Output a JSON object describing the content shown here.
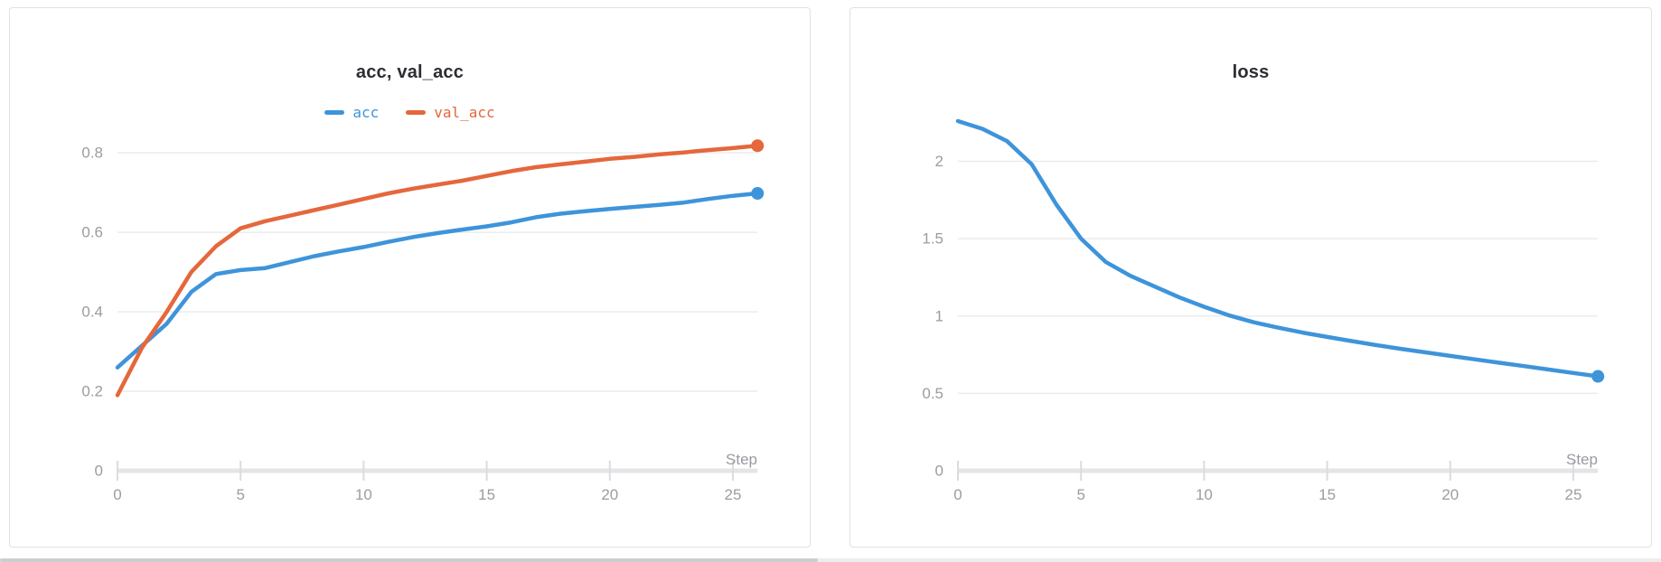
{
  "colors": {
    "series_blue": "#3e94da",
    "series_orange": "#e5673c",
    "title_text": "#2c2e33",
    "axis_text": "#9b9ca2",
    "gridline": "#ececee",
    "axis_bar": "#e5e5e8",
    "tick_mark": "#dcdce0",
    "panel_border": "#dfe1e4",
    "background": "#ffffff"
  },
  "chart_data": [
    {
      "type": "line",
      "title": "acc, val_acc",
      "x_label": "Step",
      "legend_position": "top",
      "grid": true,
      "xlim": [
        0,
        26
      ],
      "xticks": [
        0,
        5,
        10,
        15,
        20,
        25
      ],
      "ylim": [
        0,
        0.88
      ],
      "yticks": [
        0,
        0.2,
        0.4,
        0.6,
        0.8
      ],
      "ytick_labels": [
        "0",
        "0.2",
        "0.4",
        "0.6",
        "0.8"
      ],
      "x": [
        0,
        1,
        2,
        3,
        4,
        5,
        6,
        7,
        8,
        9,
        10,
        11,
        12,
        13,
        14,
        15,
        16,
        17,
        18,
        19,
        20,
        21,
        22,
        23,
        24,
        25,
        26
      ],
      "series": [
        {
          "name": "acc",
          "color": "#3e94da",
          "values": [
            0.26,
            0.315,
            0.37,
            0.45,
            0.495,
            0.505,
            0.51,
            0.525,
            0.54,
            0.552,
            0.563,
            0.576,
            0.588,
            0.598,
            0.607,
            0.615,
            0.625,
            0.638,
            0.647,
            0.653,
            0.659,
            0.664,
            0.669,
            0.675,
            0.684,
            0.692,
            0.698
          ]
        },
        {
          "name": "val_acc",
          "color": "#e5673c",
          "values": [
            0.19,
            0.31,
            0.4,
            0.5,
            0.565,
            0.61,
            0.628,
            0.642,
            0.656,
            0.67,
            0.684,
            0.698,
            0.71,
            0.72,
            0.73,
            0.742,
            0.754,
            0.764,
            0.771,
            0.778,
            0.785,
            0.79,
            0.796,
            0.801,
            0.807,
            0.812,
            0.818
          ]
        }
      ]
    },
    {
      "type": "line",
      "title": "loss",
      "x_label": "Step",
      "legend_position": "none",
      "grid": true,
      "xlim": [
        0,
        26
      ],
      "xticks": [
        0,
        5,
        10,
        15,
        20,
        25
      ],
      "ylim": [
        0,
        2.26
      ],
      "yticks": [
        0,
        0.5,
        1,
        1.5,
        2
      ],
      "ytick_labels": [
        "0",
        "0.5",
        "1",
        "1.5",
        "2"
      ],
      "x": [
        0,
        1,
        2,
        3,
        4,
        5,
        6,
        7,
        8,
        9,
        10,
        11,
        12,
        13,
        14,
        15,
        16,
        17,
        18,
        19,
        20,
        21,
        22,
        23,
        24,
        25,
        26
      ],
      "series": [
        {
          "name": "loss",
          "color": "#3e94da",
          "values": [
            2.26,
            2.21,
            2.13,
            1.98,
            1.72,
            1.5,
            1.35,
            1.26,
            1.19,
            1.12,
            1.06,
            1.005,
            0.96,
            0.925,
            0.893,
            0.865,
            0.838,
            0.812,
            0.788,
            0.765,
            0.742,
            0.72,
            0.698,
            0.676,
            0.654,
            0.632,
            0.61
          ]
        }
      ]
    }
  ]
}
